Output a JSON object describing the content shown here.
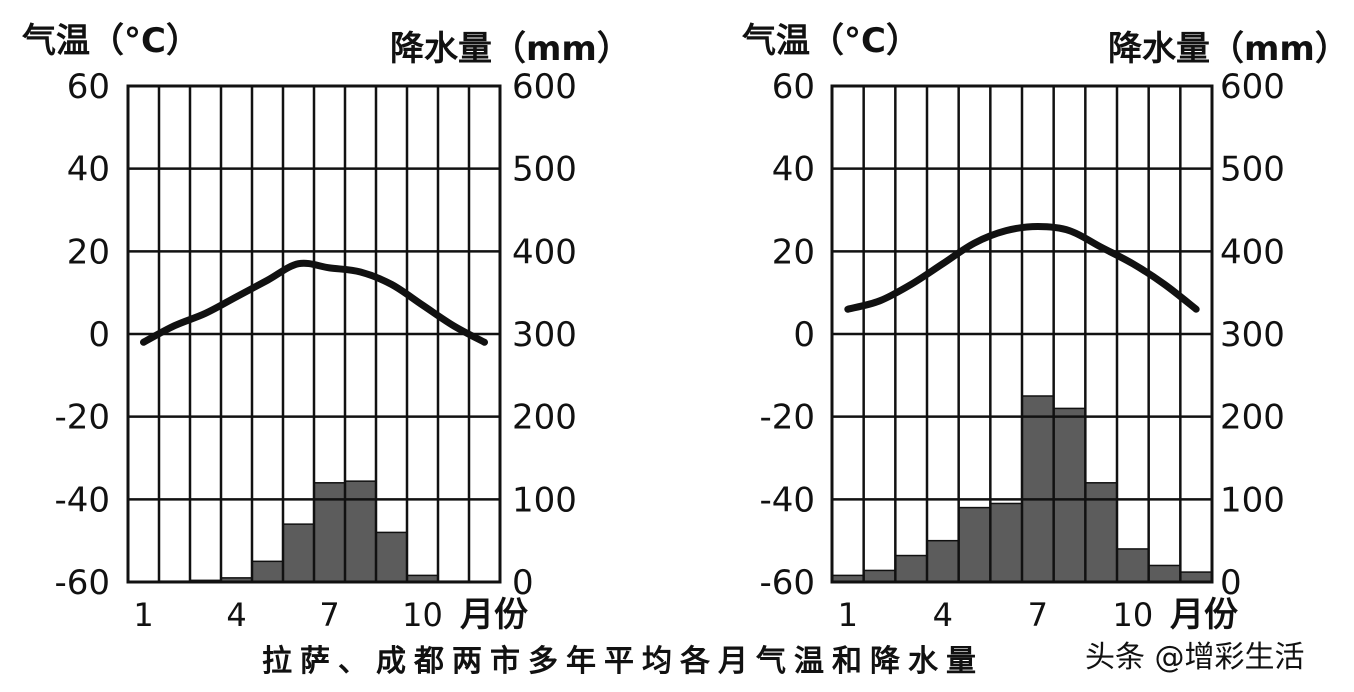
{
  "caption": "拉萨、成都两市多年平均各月气温和降水量",
  "watermark": "头条 @增彩生活",
  "chart_data": [
    {
      "type": "bar+line",
      "y1label": "气温（°C）",
      "y2label": "降水量（mm）",
      "xlabel": "月份",
      "x_ticks": [
        "1",
        "4",
        "7",
        "10"
      ],
      "x_tick_months": [
        1,
        4,
        7,
        10
      ],
      "months": [
        1,
        2,
        3,
        4,
        5,
        6,
        7,
        8,
        9,
        10,
        11,
        12
      ],
      "y1_ticks": [
        "60",
        "40",
        "20",
        "0",
        "-20",
        "-40",
        "-60"
      ],
      "y1lim": [
        -60,
        60
      ],
      "y2_ticks": [
        "600",
        "500",
        "400",
        "300",
        "200",
        "100",
        "0"
      ],
      "y2lim": [
        0,
        600
      ],
      "temperature": [
        -2,
        2,
        5,
        9,
        13,
        17,
        16,
        15,
        12,
        7,
        2,
        -2
      ],
      "precipitation": [
        0,
        1,
        2,
        5,
        25,
        70,
        120,
        122,
        60,
        8,
        1,
        0
      ],
      "grid": true
    },
    {
      "type": "bar+line",
      "y1label": "气温（°C）",
      "y2label": "降水量（mm）",
      "xlabel": "月份",
      "x_ticks": [
        "1",
        "4",
        "7",
        "10"
      ],
      "x_tick_months": [
        1,
        4,
        7,
        10
      ],
      "months": [
        1,
        2,
        3,
        4,
        5,
        6,
        7,
        8,
        9,
        10,
        11,
        12
      ],
      "y1_ticks": [
        "60",
        "40",
        "20",
        "0",
        "-20",
        "-40",
        "-60"
      ],
      "y1lim": [
        -60,
        60
      ],
      "y2_ticks": [
        "600",
        "500",
        "400",
        "300",
        "200",
        "100",
        "0"
      ],
      "y2lim": [
        0,
        600
      ],
      "temperature": [
        6,
        8,
        12,
        17,
        22,
        25,
        26,
        25,
        21,
        17,
        12,
        6
      ],
      "precipitation": [
        8,
        14,
        32,
        50,
        90,
        95,
        225,
        210,
        120,
        40,
        20,
        12
      ],
      "grid": true
    }
  ]
}
